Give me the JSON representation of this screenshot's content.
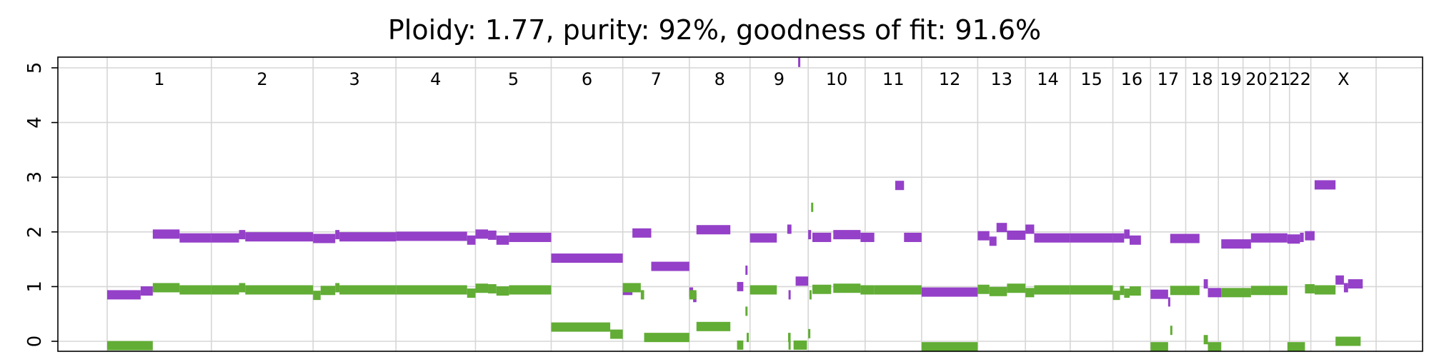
{
  "chart_data": {
    "type": "scatter",
    "title": "Ploidy: 1.77, purity: 92%, goodness of fit: 91.6%",
    "xlabel": "",
    "ylabel": "",
    "ylim": [
      -0.15,
      5.15
    ],
    "yticks": [
      0,
      1,
      2,
      3,
      4,
      5
    ],
    "grid": true,
    "chromosomes": [
      {
        "label": "1",
        "start": 0,
        "end": 249
      },
      {
        "label": "2",
        "start": 249,
        "end": 492
      },
      {
        "label": "3",
        "start": 492,
        "end": 690
      },
      {
        "label": "4",
        "start": 690,
        "end": 880
      },
      {
        "label": "5",
        "start": 880,
        "end": 1061
      },
      {
        "label": "6",
        "start": 1061,
        "end": 1232
      },
      {
        "label": "7",
        "start": 1232,
        "end": 1391
      },
      {
        "label": "8",
        "start": 1391,
        "end": 1536
      },
      {
        "label": "9",
        "start": 1536,
        "end": 1675
      },
      {
        "label": "10",
        "start": 1675,
        "end": 1811
      },
      {
        "label": "11",
        "start": 1811,
        "end": 1946
      },
      {
        "label": "12",
        "start": 1946,
        "end": 2080
      },
      {
        "label": "13",
        "start": 2080,
        "end": 2194
      },
      {
        "label": "14",
        "start": 2194,
        "end": 2301
      },
      {
        "label": "15",
        "start": 2301,
        "end": 2403
      },
      {
        "label": "16",
        "start": 2403,
        "end": 2493
      },
      {
        "label": "17",
        "start": 2493,
        "end": 2577
      },
      {
        "label": "18",
        "start": 2577,
        "end": 2655
      },
      {
        "label": "19",
        "start": 2655,
        "end": 2714
      },
      {
        "label": "20",
        "start": 2714,
        "end": 2778
      },
      {
        "label": "21",
        "start": 2778,
        "end": 2825
      },
      {
        "label": "22",
        "start": 2825,
        "end": 2876
      },
      {
        "label": "X",
        "start": 2876,
        "end": 3032
      }
    ],
    "series": [
      {
        "color": "#9440c8",
        "segments": [
          [
            0,
            80,
            0.85
          ],
          [
            80,
            109,
            0.92
          ],
          [
            109,
            173,
            1.96
          ],
          [
            173,
            249,
            1.89
          ],
          [
            249,
            315,
            1.89
          ],
          [
            315,
            330,
            1.95
          ],
          [
            330,
            492,
            1.91
          ],
          [
            492,
            545,
            1.88
          ],
          [
            545,
            555,
            1.95
          ],
          [
            555,
            690,
            1.91
          ],
          [
            690,
            860,
            1.92
          ],
          [
            860,
            880,
            1.85
          ],
          [
            880,
            910,
            1.96
          ],
          [
            910,
            930,
            1.94
          ],
          [
            930,
            960,
            1.85
          ],
          [
            960,
            1061,
            1.9
          ],
          [
            1061,
            1232,
            1.52
          ],
          [
            1232,
            1255,
            0.93
          ],
          [
            1255,
            1300,
            1.98
          ],
          [
            1300,
            1391,
            1.37
          ],
          [
            1391,
            1400,
            0.9
          ],
          [
            1400,
            1408,
            0.8
          ],
          [
            1408,
            1489,
            2.04
          ],
          [
            1505,
            1520,
            1.0
          ],
          [
            1525,
            1530,
            1.3
          ],
          [
            1536,
            1600,
            1.89
          ],
          [
            1625,
            1635,
            2.05
          ],
          [
            1628,
            1632,
            0.85
          ],
          [
            1651,
            1654,
            5.1
          ],
          [
            1645,
            1675,
            1.1
          ],
          [
            1675,
            1682,
            1.95
          ],
          [
            1685,
            1730,
            1.9
          ],
          [
            1735,
            1800,
            1.95
          ],
          [
            1800,
            1833,
            1.9
          ],
          [
            1883,
            1904,
            2.85
          ],
          [
            1904,
            1946,
            1.9
          ],
          [
            1946,
            2080,
            0.9
          ],
          [
            2080,
            2108,
            1.93
          ],
          [
            2108,
            2125,
            1.83
          ],
          [
            2125,
            2150,
            2.08
          ],
          [
            2150,
            2194,
            1.94
          ],
          [
            2194,
            2215,
            2.05
          ],
          [
            2215,
            2301,
            1.89
          ],
          [
            2301,
            2403,
            1.89
          ],
          [
            2403,
            2430,
            1.89
          ],
          [
            2430,
            2443,
            1.96
          ],
          [
            2443,
            2470,
            1.85
          ],
          [
            2493,
            2535,
            0.86
          ],
          [
            2535,
            2540,
            0.72
          ],
          [
            2540,
            2610,
            1.88
          ],
          [
            2620,
            2630,
            1.05
          ],
          [
            2630,
            2662,
            0.89
          ],
          [
            2662,
            2733,
            1.78
          ],
          [
            2733,
            2820,
            1.89
          ],
          [
            2820,
            2850,
            1.87
          ],
          [
            2850,
            2859,
            1.9
          ],
          [
            2862,
            2885,
            1.93
          ],
          [
            2885,
            2935,
            2.86
          ],
          [
            2935,
            2955,
            1.12
          ],
          [
            2955,
            2965,
            0.98
          ],
          [
            2965,
            3000,
            1.05
          ]
        ]
      },
      {
        "color": "#62ad35",
        "segments": [
          [
            0,
            109,
            -0.08
          ],
          [
            109,
            173,
            0.98
          ],
          [
            173,
            249,
            0.94
          ],
          [
            249,
            315,
            0.94
          ],
          [
            315,
            330,
            0.98
          ],
          [
            330,
            492,
            0.94
          ],
          [
            492,
            510,
            0.84
          ],
          [
            510,
            545,
            0.93
          ],
          [
            545,
            555,
            0.98
          ],
          [
            555,
            690,
            0.94
          ],
          [
            690,
            860,
            0.94
          ],
          [
            860,
            880,
            0.88
          ],
          [
            880,
            910,
            0.97
          ],
          [
            910,
            930,
            0.96
          ],
          [
            930,
            960,
            0.92
          ],
          [
            960,
            1061,
            0.94
          ],
          [
            1061,
            1202,
            0.26
          ],
          [
            1202,
            1232,
            0.13
          ],
          [
            1232,
            1275,
            0.98
          ],
          [
            1275,
            1283,
            0.85
          ],
          [
            1283,
            1391,
            0.07
          ],
          [
            1391,
            1408,
            0.85
          ],
          [
            1408,
            1489,
            0.27
          ],
          [
            1505,
            1520,
            -0.07
          ],
          [
            1525,
            1530,
            0.55
          ],
          [
            1528,
            1530,
            0.07
          ],
          [
            1536,
            1600,
            0.94
          ],
          [
            1627,
            1633,
            0.07
          ],
          [
            1628,
            1632,
            -0.07
          ],
          [
            1640,
            1672,
            -0.07
          ],
          [
            1675,
            1680,
            0.14
          ],
          [
            1682,
            1685,
            2.45
          ],
          [
            1678,
            1682,
            0.85
          ],
          [
            1685,
            1730,
            0.95
          ],
          [
            1735,
            1800,
            0.97
          ],
          [
            1800,
            1833,
            0.94
          ],
          [
            1833,
            1946,
            0.94
          ],
          [
            1946,
            2080,
            -0.1
          ],
          [
            2080,
            2108,
            0.95
          ],
          [
            2108,
            2150,
            0.91
          ],
          [
            2150,
            2194,
            0.97
          ],
          [
            2194,
            2215,
            0.89
          ],
          [
            2215,
            2301,
            0.94
          ],
          [
            2301,
            2403,
            0.94
          ],
          [
            2403,
            2420,
            0.84
          ],
          [
            2420,
            2430,
            0.93
          ],
          [
            2430,
            2443,
            0.88
          ],
          [
            2443,
            2470,
            0.92
          ],
          [
            2493,
            2535,
            -0.1
          ],
          [
            2540,
            2545,
            0.2
          ],
          [
            2540,
            2610,
            0.93
          ],
          [
            2620,
            2630,
            0.03
          ],
          [
            2630,
            2662,
            -0.1
          ],
          [
            2662,
            2733,
            0.89
          ],
          [
            2733,
            2820,
            0.93
          ],
          [
            2820,
            2862,
            -0.1
          ],
          [
            2862,
            2885,
            0.96
          ],
          [
            2885,
            2935,
            0.94
          ],
          [
            2935,
            2995,
            0.0
          ]
        ]
      }
    ]
  }
}
